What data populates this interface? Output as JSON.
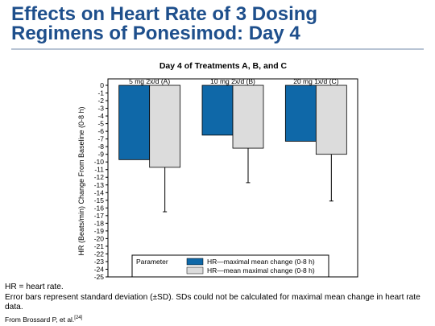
{
  "slide": {
    "title_line1": "Effects on Heart Rate of 3 Dosing",
    "title_line2": "Regimens of Ponesimod: Day 4"
  },
  "footnotes": {
    "abbrev": "HR = heart rate.",
    "error_bars": "Error bars represent standard deviation (±SD). SDs could not be calculated for maximal mean change in heart rate data.",
    "source": "From Brossard P, et al.",
    "source_ref": "[24]"
  },
  "colors": {
    "title": "#1e4f8c",
    "series_blue": "#0f68a8",
    "series_gray": "#dcdcdc"
  },
  "chart_data": {
    "type": "bar",
    "title": "Day 4 of Treatments A, B, and C",
    "ylabel": "HR (Beats/min) Change From Baseline (0-8 h)",
    "xlabel": "",
    "ylim": [
      -25,
      0
    ],
    "yticks": [
      0,
      -1,
      -2,
      -3,
      -4,
      -5,
      -6,
      -7,
      -8,
      -9,
      -10,
      -11,
      -12,
      -13,
      -14,
      -15,
      -16,
      -17,
      -18,
      -19,
      -20,
      -21,
      -22,
      -23,
      -24,
      -25
    ],
    "categories": [
      "5 mg 2x/d (A)",
      "10 mg 2x/d (B)",
      "20 mg 1x/d (C)"
    ],
    "series": [
      {
        "name": "HR—maximal mean change (0-8 h)",
        "color": "#0f68a8",
        "values": [
          -9.7,
          -6.5,
          -7.3
        ]
      },
      {
        "name": "HR—mean maximal change (0-8 h)",
        "color": "#dcdcdc",
        "values": [
          -10.7,
          -8.2,
          -9.0
        ],
        "sd": [
          5.8,
          4.5,
          6.1
        ]
      }
    ],
    "legend": {
      "title": "Parameter",
      "placement": "bottom-right"
    },
    "grid": false
  }
}
